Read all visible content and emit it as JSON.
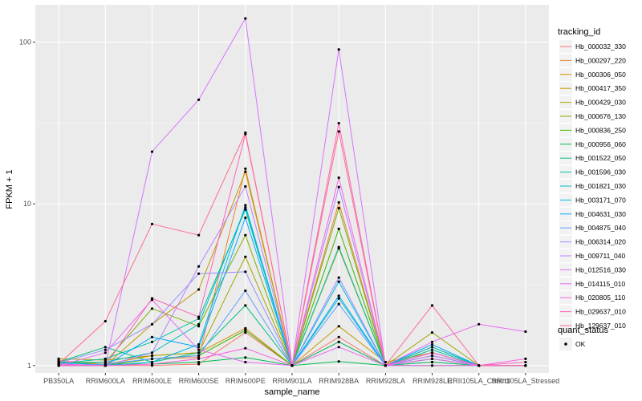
{
  "chart_data": {
    "type": "line",
    "xlabel": "sample_name",
    "ylabel": "FPKM + 1",
    "y_scale": "log10",
    "ylim": [
      0.9,
      170
    ],
    "y_ticks": [
      1,
      10,
      100
    ],
    "y_tick_labels": [
      "1",
      "10",
      "100"
    ],
    "grid": true,
    "legend_placement": "right",
    "categories": [
      "PB350LA",
      "RRIM600LA",
      "RRIM600LE",
      "RRIM600SE",
      "RRIM600PE",
      "RRIM901LA",
      "RRIM928BA",
      "RRIM928LA",
      "RRIM928LE",
      "RRII105LA_Control",
      "RRII105LA_Stressed"
    ],
    "legend": {
      "title": "tracking_id"
    },
    "legend2": {
      "title": "quant_status",
      "items": [
        "OK"
      ]
    },
    "series": [
      {
        "name": "Hb_000032_330",
        "color": "#F8766D",
        "values": [
          1.08,
          1.0,
          1.0,
          1.02,
          1.6,
          1.0,
          1.5,
          1.0,
          1.05,
          1.0,
          1.0
        ]
      },
      {
        "name": "Hb_000297_220",
        "color": "#EA8331",
        "values": [
          1.02,
          1.0,
          1.1,
          1.12,
          16.5,
          1.0,
          10.2,
          1.0,
          1.15,
          1.0,
          1.0
        ]
      },
      {
        "name": "Hb_000306_050",
        "color": "#D89000",
        "values": [
          1.05,
          1.02,
          1.15,
          1.2,
          1.7,
          1.0,
          1.4,
          1.0,
          1.1,
          1.0,
          1.0
        ]
      },
      {
        "name": "Hb_000417_350",
        "color": "#C09B00",
        "values": [
          1.0,
          1.0,
          1.8,
          2.95,
          15.8,
          1.0,
          1.75,
          1.05,
          1.2,
          1.0,
          1.0
        ]
      },
      {
        "name": "Hb_000429_030",
        "color": "#A3A500",
        "values": [
          1.1,
          1.08,
          1.15,
          1.2,
          4.7,
          1.0,
          5.3,
          1.0,
          1.6,
          1.0,
          1.0
        ]
      },
      {
        "name": "Hb_000676_130",
        "color": "#7CAE00",
        "values": [
          1.04,
          1.05,
          2.25,
          1.75,
          6.4,
          1.0,
          9.4,
          1.0,
          1.3,
          1.0,
          1.0
        ]
      },
      {
        "name": "Hb_000836_250",
        "color": "#39B600",
        "values": [
          1.06,
          1.0,
          1.1,
          1.15,
          1.65,
          1.0,
          7.0,
          1.0,
          1.1,
          1.0,
          1.0
        ]
      },
      {
        "name": "Hb_000956_060",
        "color": "#00BB4E",
        "values": [
          1.0,
          1.02,
          1.02,
          1.05,
          1.12,
          1.0,
          1.06,
          1.0,
          1.0,
          1.0,
          1.0
        ]
      },
      {
        "name": "Hb_001522_050",
        "color": "#00BF7D",
        "values": [
          1.05,
          1.3,
          1.05,
          1.2,
          2.35,
          1.0,
          1.4,
          1.0,
          1.05,
          1.0,
          1.0
        ]
      },
      {
        "name": "Hb_001596_030",
        "color": "#00C1A3",
        "values": [
          1.03,
          1.1,
          1.4,
          1.95,
          9.2,
          1.0,
          5.4,
          1.0,
          1.25,
          1.0,
          1.0
        ]
      },
      {
        "name": "Hb_001821_030",
        "color": "#00BFC4",
        "values": [
          1.02,
          1.05,
          1.2,
          1.8,
          9.5,
          1.0,
          2.6,
          1.0,
          1.3,
          1.0,
          1.0
        ]
      },
      {
        "name": "Hb_003171_070",
        "color": "#00B8E5",
        "values": [
          1.0,
          1.0,
          1.05,
          1.35,
          9.8,
          1.0,
          3.3,
          1.0,
          1.2,
          1.0,
          1.0
        ]
      },
      {
        "name": "Hb_004631_030",
        "color": "#00A9FF",
        "values": [
          1.05,
          1.0,
          1.5,
          1.3,
          8.2,
          1.0,
          2.7,
          1.0,
          1.35,
          1.0,
          1.0
        ]
      },
      {
        "name": "Hb_004875_040",
        "color": "#619CFF",
        "values": [
          1.0,
          1.02,
          1.1,
          1.15,
          2.9,
          1.0,
          2.4,
          1.0,
          1.15,
          1.0,
          1.0
        ]
      },
      {
        "name": "Hb_006314_020",
        "color": "#9590FF",
        "values": [
          1.04,
          1.25,
          1.8,
          3.7,
          3.8,
          1.0,
          3.5,
          1.0,
          1.2,
          1.0,
          1.0
        ]
      },
      {
        "name": "Hb_009711_040",
        "color": "#B983FF",
        "values": [
          1.0,
          1.0,
          1.2,
          4.1,
          12.8,
          1.0,
          12.7,
          1.0,
          1.15,
          1.0,
          1.0
        ]
      },
      {
        "name": "Hb_012516_030",
        "color": "#D575FE",
        "values": [
          1.0,
          1.0,
          21.0,
          44.0,
          140.0,
          1.0,
          90.0,
          1.0,
          1.1,
          1.0,
          1.0
        ]
      },
      {
        "name": "Hb_014115_010",
        "color": "#E76BF3",
        "values": [
          1.0,
          1.2,
          2.55,
          1.25,
          1.05,
          1.0,
          1.3,
          1.0,
          1.4,
          1.8,
          1.62
        ]
      },
      {
        "name": "Hb_020805_110",
        "color": "#F564E3",
        "values": [
          1.02,
          1.0,
          1.02,
          1.1,
          1.28,
          1.0,
          14.5,
          1.0,
          1.0,
          1.0,
          1.1
        ]
      },
      {
        "name": "Hb_029637_010",
        "color": "#FF62BC",
        "values": [
          1.0,
          1.0,
          2.6,
          2.0,
          27.0,
          1.0,
          31.5,
          1.0,
          1.2,
          1.0,
          1.05
        ]
      },
      {
        "name": "Hb_129637_010",
        "color": "#FF6C91",
        "values": [
          1.02,
          1.88,
          7.5,
          6.4,
          27.5,
          1.0,
          28.0,
          1.0,
          2.35,
          1.0,
          1.0
        ]
      }
    ]
  }
}
